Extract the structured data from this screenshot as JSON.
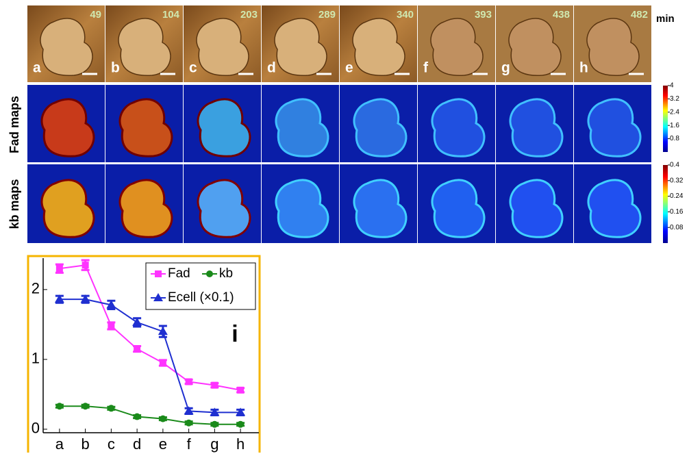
{
  "panels": {
    "labels": [
      "a",
      "b",
      "c",
      "d",
      "e",
      "f",
      "g",
      "h"
    ],
    "times": [
      49,
      104,
      203,
      289,
      340,
      393,
      438,
      482
    ],
    "time_unit": "min",
    "row_labels": [
      "Fad maps",
      "kb maps"
    ],
    "fad_colorbar": {
      "lim": [
        0,
        4
      ],
      "ticks": [
        4,
        3.2,
        2.4,
        1.6,
        0.8
      ]
    },
    "kb_colorbar": {
      "lim": [
        0,
        0.4
      ],
      "ticks": [
        0.4,
        0.32,
        0.24,
        0.16,
        0.08
      ]
    }
  },
  "chart_data": {
    "type": "line",
    "panel_label": "i",
    "categories": [
      "a",
      "b",
      "c",
      "d",
      "e",
      "f",
      "g",
      "h"
    ],
    "ylim": [
      -0.05,
      2.45
    ],
    "yticks": [
      0,
      1,
      2
    ],
    "series": [
      {
        "name": "Fad",
        "color": "#ff33ff",
        "marker": "square",
        "values": [
          2.3,
          2.35,
          1.48,
          1.15,
          0.95,
          0.68,
          0.63,
          0.56
        ],
        "errors": [
          0.06,
          0.07,
          0.05,
          0.04,
          0.04,
          0.03,
          0.03,
          0.03
        ]
      },
      {
        "name": "kb",
        "color": "#1a8a1a",
        "marker": "circle",
        "values": [
          0.33,
          0.33,
          0.3,
          0.18,
          0.15,
          0.09,
          0.07,
          0.07
        ],
        "errors": [
          0.02,
          0.02,
          0.02,
          0.02,
          0.02,
          0.02,
          0.02,
          0.02
        ]
      },
      {
        "name": "Ecell (×0.1)",
        "color": "#1f2fd0",
        "marker": "triangle",
        "values": [
          1.86,
          1.86,
          1.78,
          1.53,
          1.4,
          0.26,
          0.24,
          0.24
        ],
        "errors": [
          0.05,
          0.05,
          0.06,
          0.06,
          0.08,
          0.04,
          0.04,
          0.04
        ]
      }
    ]
  }
}
